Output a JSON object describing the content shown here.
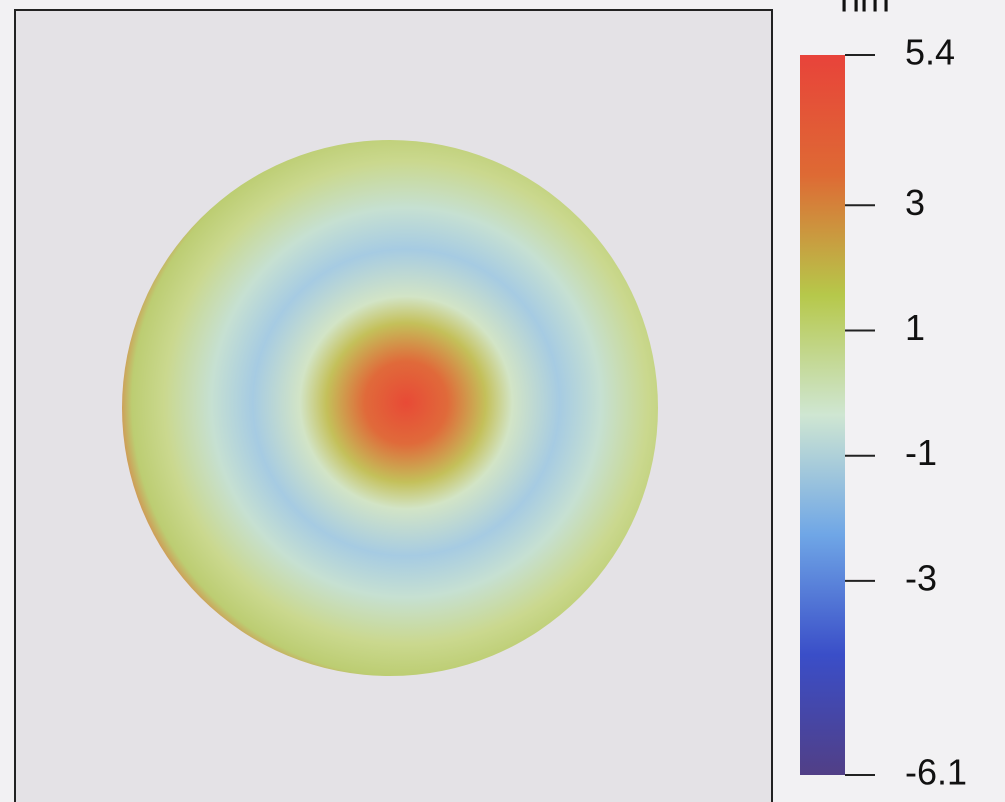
{
  "chart_data": {
    "type": "heatmap",
    "z_label": "nm",
    "ylim": [
      -6.1,
      5.4
    ],
    "yticks": [
      5.4,
      3.0,
      1.0,
      -1.0,
      -3.0,
      -6.1
    ],
    "colors": [
      "#513f86",
      "#3a4ec8",
      "#6fa6e6",
      "#cfe6d2",
      "#b6c84a",
      "#de6a34",
      "#e8433a"
    ]
  }
}
